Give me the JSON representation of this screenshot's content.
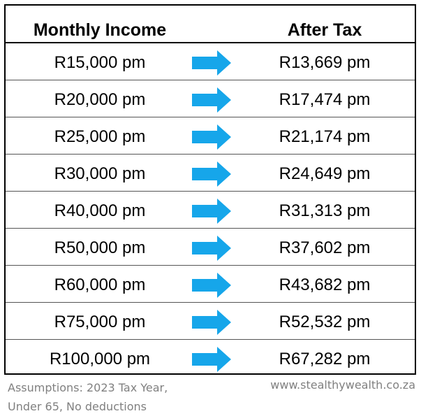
{
  "table": {
    "header_income": "Monthly Income",
    "header_after_tax": "After Tax",
    "arrow_icon": "right-arrow-icon",
    "arrow_color": "#16a6ea",
    "rows": [
      {
        "income": "R15,000 pm",
        "after_tax": "R13,669 pm"
      },
      {
        "income": "R20,000 pm",
        "after_tax": "R17,474 pm"
      },
      {
        "income": "R25,000 pm",
        "after_tax": "R21,174 pm"
      },
      {
        "income": "R30,000 pm",
        "after_tax": "R24,649 pm"
      },
      {
        "income": "R40,000 pm",
        "after_tax": "R31,313 pm"
      },
      {
        "income": "R50,000 pm",
        "after_tax": "R37,602 pm"
      },
      {
        "income": "R60,000 pm",
        "after_tax": "R43,682 pm"
      },
      {
        "income": "R75,000 pm",
        "after_tax": "R52,532 pm"
      },
      {
        "income": "R100,000 pm",
        "after_tax": "R67,282 pm"
      }
    ]
  },
  "footer": {
    "assumptions_line1": "Assumptions: 2023 Tax Year,",
    "assumptions_line2": "Under 65, No deductions",
    "website": "www.stealthywealth.co.za"
  }
}
